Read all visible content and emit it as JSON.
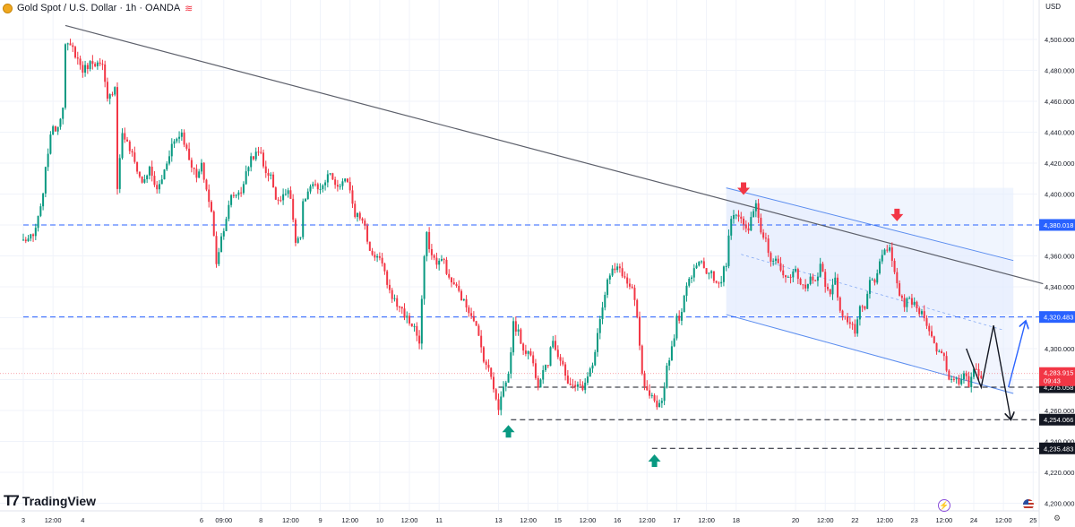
{
  "header": {
    "symbol_title": "Gold Spot / U.S. Dollar · 1h · OANDA",
    "live_glyph": "≋"
  },
  "currency_label": "USD",
  "logo_text": "TradingView",
  "icons": [
    "coin-icon",
    "live-data-icon",
    "tradingview-logo-icon",
    "lightning-icon",
    "us-flag-icon",
    "settings-icon"
  ],
  "colors": {
    "up": "#089981",
    "down": "#f23645",
    "level_line": "#2962ff",
    "support_line": "#131722",
    "trendline": "#5d606b",
    "channel": "#5b8def",
    "channel_fill": "#e3ecfd",
    "marker_down": "#f23645",
    "marker_up": "#089981",
    "price_badge": "#f23645"
  },
  "chart_data": {
    "type": "candlestick",
    "symbol": "XAU/USD",
    "timeframe": "1h",
    "y_axis": {
      "range": [
        4193,
        4518
      ],
      "ticks": [
        4500,
        4480,
        4460,
        4440,
        4420,
        4400,
        4380,
        4360,
        4340,
        4320,
        4300,
        4280,
        4260,
        4240,
        4220,
        4200
      ],
      "tick_labels": [
        "4,500.000",
        "4,480.000",
        "4,460.000",
        "4,440.000",
        "4,420.000",
        "4,400.000",
        "4,380.000",
        "4,360.000",
        "4,340.000",
        "4,320.000",
        "4,300.000",
        "4,280.000",
        "4,260.000",
        "4,240.000",
        "4,220.000",
        "4,200.000"
      ]
    },
    "x_axis": {
      "ticks": [
        {
          "label": "3",
          "t": 0
        },
        {
          "label": "12:00",
          "t": 12
        },
        {
          "label": "4",
          "t": 24
        },
        {
          "label": "6",
          "t": 72
        },
        {
          "label": "09:00",
          "t": 81
        },
        {
          "label": "8",
          "t": 96
        },
        {
          "label": "12:00",
          "t": 108
        },
        {
          "label": "9",
          "t": 120
        },
        {
          "label": "12:00",
          "t": 132
        },
        {
          "label": "10",
          "t": 144
        },
        {
          "label": "12:00",
          "t": 156
        },
        {
          "label": "11",
          "t": 168
        },
        {
          "label": "13",
          "t": 192
        },
        {
          "label": "12:00",
          "t": 204
        },
        {
          "label": "15",
          "t": 216
        },
        {
          "label": "12:00",
          "t": 228
        },
        {
          "label": "16",
          "t": 240
        },
        {
          "label": "12:00",
          "t": 252
        },
        {
          "label": "17",
          "t": 264
        },
        {
          "label": "12:00",
          "t": 276
        },
        {
          "label": "18",
          "t": 288
        },
        {
          "label": "20",
          "t": 312
        },
        {
          "label": "12:00",
          "t": 324
        },
        {
          "label": "22",
          "t": 336
        },
        {
          "label": "12:00",
          "t": 348
        },
        {
          "label": "23",
          "t": 360
        },
        {
          "label": "12:00",
          "t": 372
        },
        {
          "label": "24",
          "t": 384
        },
        {
          "label": "12:00",
          "t": 396
        },
        {
          "label": "25",
          "t": 408
        }
      ]
    },
    "keyframes": [
      [
        0,
        4370
      ],
      [
        4,
        4372
      ],
      [
        7,
        4390
      ],
      [
        11,
        4440
      ],
      [
        14,
        4444
      ],
      [
        16,
        4458
      ],
      [
        17,
        4496
      ],
      [
        20,
        4494
      ],
      [
        24,
        4480
      ],
      [
        28,
        4486
      ],
      [
        32,
        4482
      ],
      [
        34,
        4460
      ],
      [
        37,
        4470
      ],
      [
        38,
        4405
      ],
      [
        40,
        4440
      ],
      [
        44,
        4425
      ],
      [
        48,
        4407
      ],
      [
        51,
        4416
      ],
      [
        54,
        4402
      ],
      [
        56,
        4410
      ],
      [
        60,
        4432
      ],
      [
        64,
        4440
      ],
      [
        66,
        4428
      ],
      [
        70,
        4410
      ],
      [
        72,
        4418
      ],
      [
        76,
        4388
      ],
      [
        78,
        4356
      ],
      [
        80,
        4372
      ],
      [
        84,
        4398
      ],
      [
        88,
        4402
      ],
      [
        92,
        4424
      ],
      [
        96,
        4427
      ],
      [
        98,
        4412
      ],
      [
        100,
        4414
      ],
      [
        102,
        4395
      ],
      [
        106,
        4402
      ],
      [
        108,
        4398
      ],
      [
        110,
        4368
      ],
      [
        112,
        4371
      ],
      [
        113,
        4393
      ],
      [
        115,
        4403
      ],
      [
        117,
        4407
      ],
      [
        120,
        4401
      ],
      [
        124,
        4414
      ],
      [
        126,
        4404
      ],
      [
        130,
        4408
      ],
      [
        132,
        4404
      ],
      [
        134,
        4386
      ],
      [
        135,
        4390
      ],
      [
        138,
        4378
      ],
      [
        140,
        4363
      ],
      [
        144,
        4358
      ],
      [
        146,
        4348
      ],
      [
        148,
        4337
      ],
      [
        151,
        4328
      ],
      [
        152,
        4328
      ],
      [
        154,
        4322
      ],
      [
        156,
        4317
      ],
      [
        158,
        4314
      ],
      [
        160,
        4303
      ],
      [
        161,
        4330
      ],
      [
        162,
        4360
      ],
      [
        163,
        4373
      ],
      [
        165,
        4360
      ],
      [
        167,
        4356
      ],
      [
        170,
        4357
      ],
      [
        172,
        4344
      ],
      [
        174,
        4342
      ],
      [
        178,
        4330
      ],
      [
        182,
        4320
      ],
      [
        186,
        4294
      ],
      [
        189,
        4282
      ],
      [
        192,
        4262
      ],
      [
        194,
        4275
      ],
      [
        196,
        4283
      ],
      [
        198,
        4316
      ],
      [
        200,
        4310
      ],
      [
        202,
        4300
      ],
      [
        205,
        4296
      ],
      [
        208,
        4277
      ],
      [
        210,
        4288
      ],
      [
        212,
        4291
      ],
      [
        214,
        4306
      ],
      [
        216,
        4296
      ],
      [
        218,
        4290
      ],
      [
        220,
        4275
      ],
      [
        222,
        4276
      ],
      [
        224,
        4278
      ],
      [
        226,
        4272
      ],
      [
        228,
        4284
      ],
      [
        230,
        4288
      ],
      [
        232,
        4312
      ],
      [
        234,
        4328
      ],
      [
        236,
        4344
      ],
      [
        238,
        4350
      ],
      [
        241,
        4352
      ],
      [
        244,
        4342
      ],
      [
        246,
        4338
      ],
      [
        248,
        4320
      ],
      [
        250,
        4282
      ],
      [
        252,
        4271
      ],
      [
        254,
        4268
      ],
      [
        256,
        4260
      ],
      [
        258,
        4266
      ],
      [
        260,
        4288
      ],
      [
        262,
        4301
      ],
      [
        263,
        4309
      ],
      [
        264,
        4319
      ],
      [
        266,
        4322
      ],
      [
        268,
        4343
      ],
      [
        270,
        4348
      ],
      [
        272,
        4356
      ],
      [
        274,
        4358
      ],
      [
        276,
        4347
      ],
      [
        278,
        4348
      ],
      [
        280,
        4341
      ],
      [
        282,
        4343
      ],
      [
        283,
        4355
      ],
      [
        284,
        4353
      ],
      [
        285,
        4373
      ],
      [
        286,
        4386
      ],
      [
        288,
        4389
      ],
      [
        290,
        4385
      ],
      [
        293,
        4374
      ],
      [
        294,
        4385
      ],
      [
        296,
        4392
      ],
      [
        298,
        4373
      ],
      [
        300,
        4370
      ],
      [
        302,
        4358
      ],
      [
        304,
        4356
      ],
      [
        306,
        4353
      ],
      [
        308,
        4345
      ],
      [
        310,
        4345
      ],
      [
        312,
        4352
      ],
      [
        314,
        4343
      ],
      [
        316,
        4338
      ],
      [
        318,
        4346
      ],
      [
        320,
        4345
      ],
      [
        322,
        4353
      ],
      [
        324,
        4342
      ],
      [
        326,
        4336
      ],
      [
        328,
        4344
      ],
      [
        330,
        4326
      ],
      [
        332,
        4320
      ],
      [
        334,
        4316
      ],
      [
        336,
        4311
      ],
      [
        338,
        4325
      ],
      [
        340,
        4325
      ],
      [
        342,
        4344
      ],
      [
        344,
        4342
      ],
      [
        346,
        4355
      ],
      [
        348,
        4366
      ],
      [
        350,
        4363
      ],
      [
        352,
        4347
      ],
      [
        354,
        4336
      ],
      [
        356,
        4328
      ],
      [
        358,
        4332
      ],
      [
        360,
        4328
      ],
      [
        362,
        4324
      ],
      [
        364,
        4322
      ],
      [
        366,
        4312
      ],
      [
        368,
        4302
      ],
      [
        370,
        4298
      ],
      [
        372,
        4295
      ],
      [
        374,
        4280
      ],
      [
        376,
        4282
      ],
      [
        378,
        4278
      ],
      [
        380,
        4286
      ],
      [
        382,
        4275
      ],
      [
        384,
        4285
      ],
      [
        386,
        4284
      ],
      [
        387,
        4281
      ]
    ],
    "horizontal_levels": [
      {
        "price": 4380.018,
        "label": "4,380.018",
        "style": "dashed",
        "color": "blue",
        "from_t": 0
      },
      {
        "price": 4320.483,
        "label": "4,320.483",
        "style": "dashed",
        "color": "blue",
        "from_t": 0
      },
      {
        "price": 4275.058,
        "label": "4,275.058",
        "style": "dashed",
        "color": "black",
        "from_t": 192
      },
      {
        "price": 4254.066,
        "label": "4,254.066",
        "style": "dashed",
        "color": "black",
        "from_t": 197
      },
      {
        "price": 4235.483,
        "label": "4,235.483",
        "style": "dashed",
        "color": "black",
        "from_t": 254
      }
    ],
    "current_price": {
      "price": 4283.915,
      "label": "4,283.915",
      "countdown": "09:43"
    },
    "trendline": {
      "from": [
        17,
        4509
      ],
      "to": [
        412,
        4342
      ]
    },
    "channel": {
      "upper": {
        "from": [
          284,
          4404
        ],
        "to": [
          400,
          4357
        ]
      },
      "lower": {
        "from": [
          284,
          4322
        ],
        "to": [
          400,
          4271
        ]
      },
      "mid": {
        "from": [
          290,
          4361
        ],
        "to": [
          396,
          4312
        ]
      },
      "box": {
        "t_from": 284,
        "t_to": 400,
        "p_from": 4322,
        "p_to": 4404
      }
    },
    "projections": [
      {
        "color": "black",
        "points": [
          [
            381,
            4300
          ],
          [
            387,
            4275
          ],
          [
            392,
            4315
          ],
          [
            399,
            4254
          ]
        ]
      },
      {
        "color": "blue",
        "points": [
          [
            398,
            4275
          ],
          [
            405,
            4318
          ]
        ]
      }
    ],
    "markers": [
      {
        "type": "arrow-down",
        "t": 291,
        "price": 4400,
        "color": "red"
      },
      {
        "type": "arrow-down",
        "t": 353,
        "price": 4383,
        "color": "red"
      },
      {
        "type": "arrow-up",
        "t": 196,
        "price": 4250,
        "color": "green"
      },
      {
        "type": "arrow-up",
        "t": 255,
        "price": 4231,
        "color": "green"
      }
    ]
  }
}
